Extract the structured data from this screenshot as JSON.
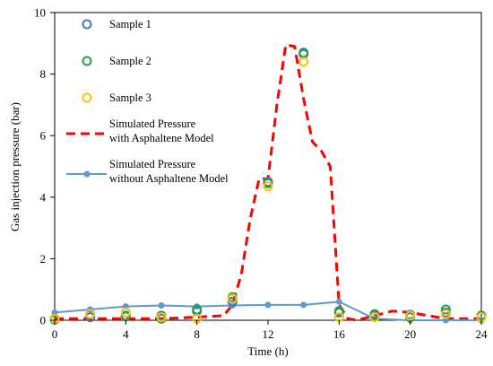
{
  "chart_data": {
    "type": "line",
    "title": "",
    "xlabel": "Time (h)",
    "ylabel": "Gas injection pressure (bar)",
    "xlim": [
      0,
      24
    ],
    "ylim": [
      0,
      10
    ],
    "xticks": [
      0,
      4,
      8,
      12,
      16,
      20,
      24
    ],
    "yticks": [
      0,
      2,
      4,
      6,
      8,
      10
    ],
    "grid": false,
    "legend_position": "top-left",
    "series": [
      {
        "name": "Sample 1",
        "kind": "scatter",
        "color": "#4472C4",
        "x": [
          0,
          2,
          4,
          6,
          8,
          10,
          12,
          14,
          16,
          18,
          20,
          22,
          24
        ],
        "y": [
          0.05,
          0.1,
          0.12,
          0.15,
          0.3,
          0.6,
          4.5,
          8.65,
          0.25,
          0.2,
          0.18,
          0.25,
          0.15
        ]
      },
      {
        "name": "Sample 2",
        "kind": "scatter",
        "color": "#22A04B",
        "x": [
          0,
          2,
          4,
          6,
          8,
          10,
          12,
          14,
          16,
          18,
          20,
          22,
          24
        ],
        "y": [
          0.02,
          0.2,
          0.15,
          0.05,
          0.35,
          0.75,
          4.45,
          8.7,
          0.3,
          0.15,
          0.1,
          0.35,
          0.15
        ]
      },
      {
        "name": "Sample 3",
        "kind": "scatter",
        "color": "#FFC000",
        "x": [
          0,
          2,
          4,
          6,
          8,
          10,
          12,
          14,
          16,
          18,
          20,
          22,
          24
        ],
        "y": [
          0.05,
          0.2,
          0.25,
          0.1,
          0.05,
          0.7,
          4.35,
          8.4,
          0.1,
          0.1,
          0.15,
          0.2,
          0.1
        ]
      },
      {
        "name": "Simulated Pressure\nwith Asphaltene Model",
        "kind": "line",
        "style": "dashed",
        "color": "#FF0000",
        "x": [
          0,
          2,
          4,
          6,
          8,
          9.5,
          10,
          10.5,
          11,
          11.5,
          12,
          12.5,
          13,
          13.5,
          14,
          14.5,
          15,
          15.5,
          16,
          16.5,
          17,
          18,
          19,
          20,
          22,
          24
        ],
        "y": [
          0.05,
          0.05,
          0.05,
          0.05,
          0.1,
          0.15,
          0.5,
          1.5,
          3.3,
          4.6,
          4.6,
          7.0,
          8.95,
          8.9,
          7.2,
          5.8,
          5.5,
          5.0,
          0.5,
          0.05,
          0.0,
          0.15,
          0.3,
          0.25,
          0.05,
          0.05
        ]
      },
      {
        "name": "Simulated Pressure\nwithout Asphaltene Model",
        "kind": "line",
        "style": "solid",
        "markers": true,
        "color": "#5B9BD5",
        "x": [
          0,
          2,
          4,
          6,
          8,
          10,
          12,
          14,
          16,
          18,
          20,
          22,
          24
        ],
        "y": [
          0.25,
          0.35,
          0.45,
          0.48,
          0.45,
          0.48,
          0.5,
          0.5,
          0.6,
          0.05,
          0.0,
          0.0,
          0.0
        ]
      }
    ]
  }
}
